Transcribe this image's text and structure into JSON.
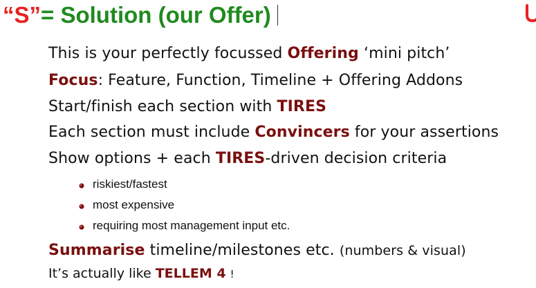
{
  "title": {
    "s_part": "“S”",
    "rest_part": " = Solution (our Offer)"
  },
  "logo_icon": "red-u-logo-icon",
  "lines": {
    "l1": {
      "a": "This is your perfectly focussed ",
      "b": "Offering",
      "c": " ‘mini pitch’"
    },
    "l2": {
      "a": "Focus",
      "b": ": Feature, Function, Timeline + Offering Addons"
    },
    "l3": {
      "a": "Start/finish each section with ",
      "b": "TIRES"
    },
    "l4": {
      "a": "Each section must include ",
      "b": "Convincers",
      "c": " for your assertions"
    },
    "l5": {
      "a": "Show options + each ",
      "b": "TIRES",
      "c": "-driven decision criteria"
    }
  },
  "bullets": [
    "riskiest/fastest",
    "most expensive",
    "requiring most management input etc."
  ],
  "summary": {
    "a": "Summarise",
    "b": " timeline/milestones etc. ",
    "c": "(numbers & visual)"
  },
  "last": {
    "a": "It’s actually like ",
    "b": "TELLEM 4",
    "c": "!"
  },
  "colors": {
    "title_red": "#e8211f",
    "title_green": "#1f8a1f",
    "highlight": "#7a0f0f"
  }
}
